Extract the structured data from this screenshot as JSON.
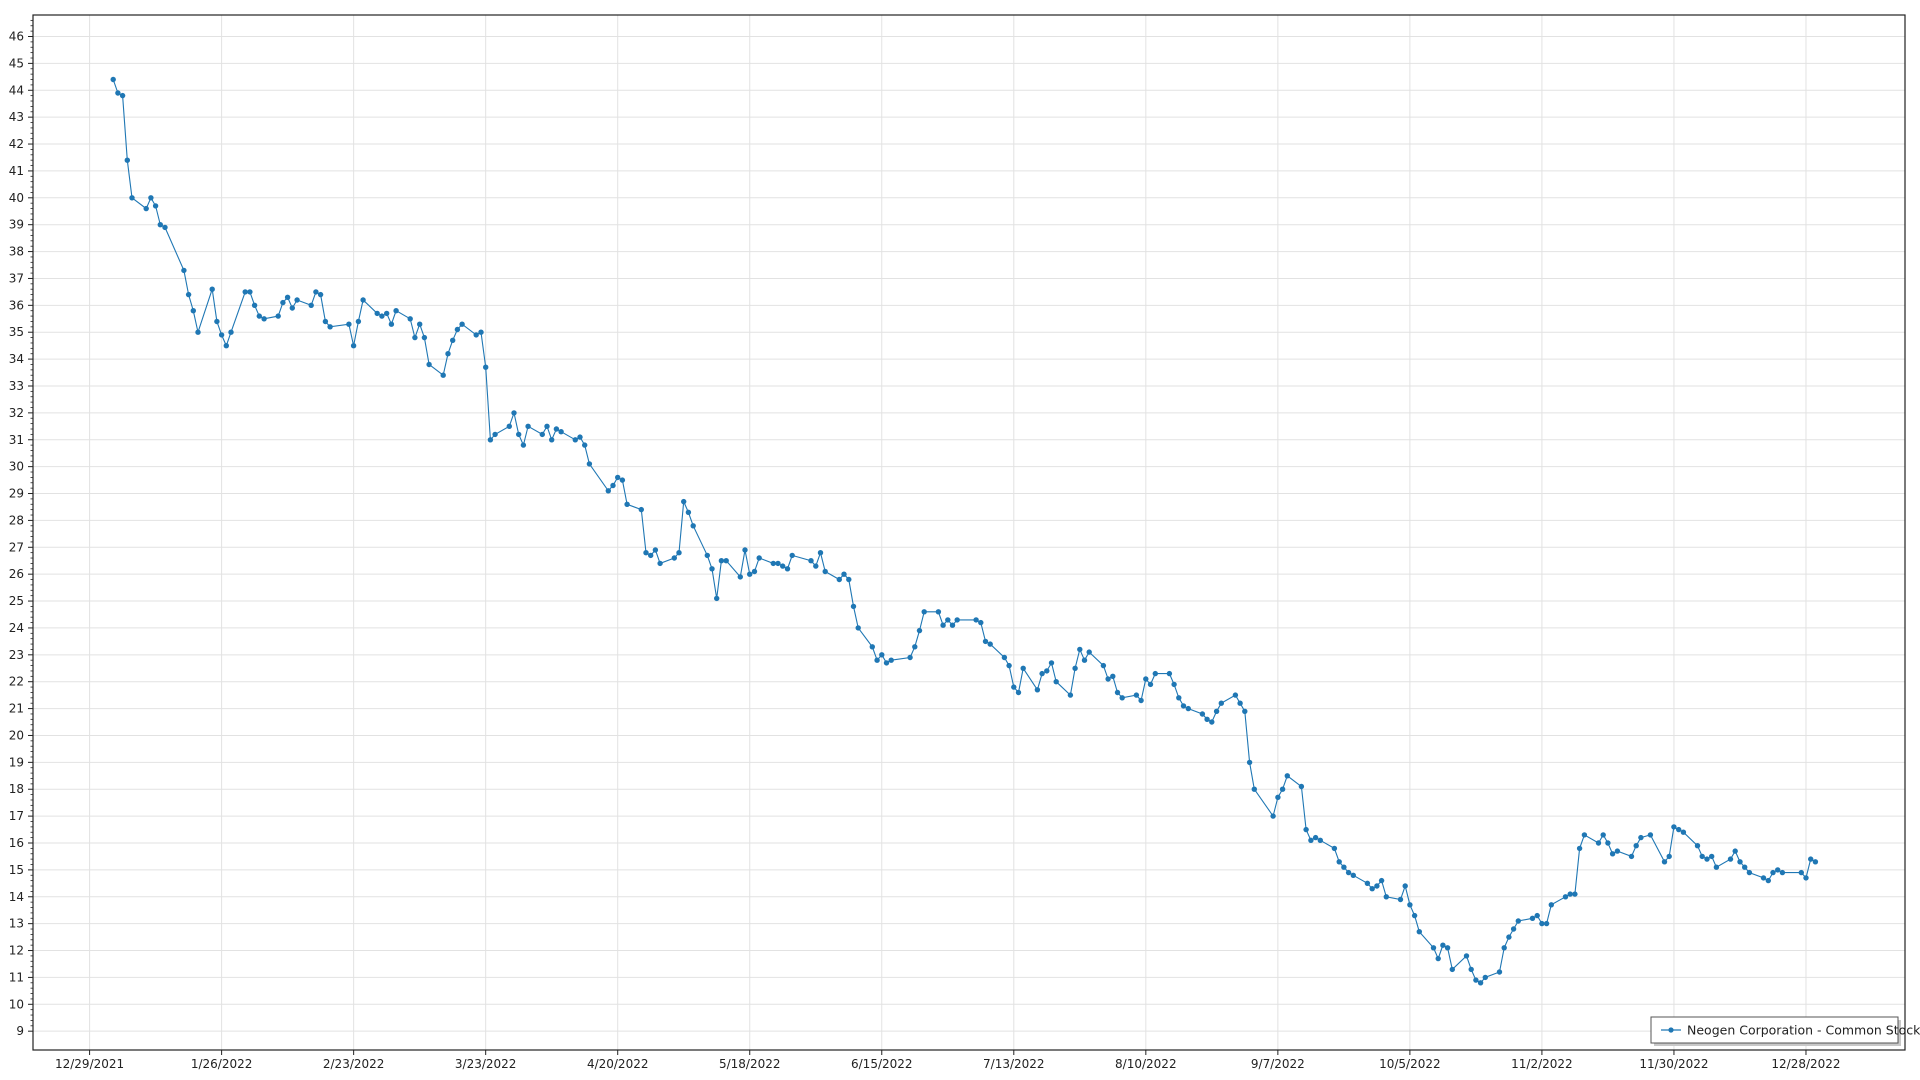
{
  "chart_data": {
    "type": "line",
    "title": "",
    "xlabel": "",
    "ylabel": "",
    "legend_position": "bottom-right",
    "grid": true,
    "ylim": [
      8.3,
      46.8
    ],
    "xlim": [
      "2021-12-17",
      "2023-01-18"
    ],
    "y_ticks": [
      9,
      10,
      11,
      12,
      13,
      14,
      15,
      16,
      17,
      18,
      19,
      20,
      21,
      22,
      23,
      24,
      25,
      26,
      27,
      28,
      29,
      30,
      31,
      32,
      33,
      34,
      35,
      36,
      37,
      38,
      39,
      40,
      41,
      42,
      43,
      44,
      45,
      46
    ],
    "x_ticks": [
      {
        "date": "2021-12-29",
        "label": "12/29/2021"
      },
      {
        "date": "2022-01-26",
        "label": "1/26/2022"
      },
      {
        "date": "2022-02-23",
        "label": "2/23/2022"
      },
      {
        "date": "2022-03-23",
        "label": "3/23/2022"
      },
      {
        "date": "2022-04-20",
        "label": "4/20/2022"
      },
      {
        "date": "2022-05-18",
        "label": "5/18/2022"
      },
      {
        "date": "2022-06-15",
        "label": "6/15/2022"
      },
      {
        "date": "2022-07-13",
        "label": "7/13/2022"
      },
      {
        "date": "2022-08-10",
        "label": "8/10/2022"
      },
      {
        "date": "2022-09-07",
        "label": "9/7/2022"
      },
      {
        "date": "2022-10-05",
        "label": "10/5/2022"
      },
      {
        "date": "2022-11-02",
        "label": "11/2/2022"
      },
      {
        "date": "2022-11-30",
        "label": "11/30/2022"
      },
      {
        "date": "2022-12-28",
        "label": "12/28/2022"
      }
    ],
    "series": [
      {
        "name": "Neogen Corporation - Common Stock",
        "color": "#1f77b4",
        "points": [
          [
            "2022-01-03",
            44.4
          ],
          [
            "2022-01-04",
            43.9
          ],
          [
            "2022-01-05",
            43.8
          ],
          [
            "2022-01-06",
            41.4
          ],
          [
            "2022-01-07",
            40.0
          ],
          [
            "2022-01-10",
            39.6
          ],
          [
            "2022-01-11",
            40.0
          ],
          [
            "2022-01-12",
            39.7
          ],
          [
            "2022-01-13",
            39.0
          ],
          [
            "2022-01-14",
            38.9
          ],
          [
            "2022-01-18",
            37.3
          ],
          [
            "2022-01-19",
            36.4
          ],
          [
            "2022-01-20",
            35.8
          ],
          [
            "2022-01-21",
            35.0
          ],
          [
            "2022-01-24",
            36.6
          ],
          [
            "2022-01-25",
            35.4
          ],
          [
            "2022-01-26",
            34.9
          ],
          [
            "2022-01-27",
            34.5
          ],
          [
            "2022-01-28",
            35.0
          ],
          [
            "2022-01-31",
            36.5
          ],
          [
            "2022-02-01",
            36.5
          ],
          [
            "2022-02-02",
            36.0
          ],
          [
            "2022-02-03",
            35.6
          ],
          [
            "2022-02-04",
            35.5
          ],
          [
            "2022-02-07",
            35.6
          ],
          [
            "2022-02-08",
            36.1
          ],
          [
            "2022-02-09",
            36.3
          ],
          [
            "2022-02-10",
            35.9
          ],
          [
            "2022-02-11",
            36.2
          ],
          [
            "2022-02-14",
            36.0
          ],
          [
            "2022-02-15",
            36.5
          ],
          [
            "2022-02-16",
            36.4
          ],
          [
            "2022-02-17",
            35.4
          ],
          [
            "2022-02-18",
            35.2
          ],
          [
            "2022-02-22",
            35.3
          ],
          [
            "2022-02-23",
            34.5
          ],
          [
            "2022-02-24",
            35.4
          ],
          [
            "2022-02-25",
            36.2
          ],
          [
            "2022-02-28",
            35.7
          ],
          [
            "2022-03-01",
            35.6
          ],
          [
            "2022-03-02",
            35.7
          ],
          [
            "2022-03-03",
            35.3
          ],
          [
            "2022-03-04",
            35.8
          ],
          [
            "2022-03-07",
            35.5
          ],
          [
            "2022-03-08",
            34.8
          ],
          [
            "2022-03-09",
            35.3
          ],
          [
            "2022-03-10",
            34.8
          ],
          [
            "2022-03-11",
            33.8
          ],
          [
            "2022-03-14",
            33.4
          ],
          [
            "2022-03-15",
            34.2
          ],
          [
            "2022-03-16",
            34.7
          ],
          [
            "2022-03-17",
            35.1
          ],
          [
            "2022-03-18",
            35.3
          ],
          [
            "2022-03-21",
            34.9
          ],
          [
            "2022-03-22",
            35.0
          ],
          [
            "2022-03-23",
            33.7
          ],
          [
            "2022-03-24",
            31.0
          ],
          [
            "2022-03-25",
            31.2
          ],
          [
            "2022-03-28",
            31.5
          ],
          [
            "2022-03-29",
            32.0
          ],
          [
            "2022-03-30",
            31.2
          ],
          [
            "2022-03-31",
            30.8
          ],
          [
            "2022-04-01",
            31.5
          ],
          [
            "2022-04-04",
            31.2
          ],
          [
            "2022-04-05",
            31.5
          ],
          [
            "2022-04-06",
            31.0
          ],
          [
            "2022-04-07",
            31.4
          ],
          [
            "2022-04-08",
            31.3
          ],
          [
            "2022-04-11",
            31.0
          ],
          [
            "2022-04-12",
            31.1
          ],
          [
            "2022-04-13",
            30.8
          ],
          [
            "2022-04-14",
            30.1
          ],
          [
            "2022-04-18",
            29.1
          ],
          [
            "2022-04-19",
            29.3
          ],
          [
            "2022-04-20",
            29.6
          ],
          [
            "2022-04-21",
            29.5
          ],
          [
            "2022-04-22",
            28.6
          ],
          [
            "2022-04-25",
            28.4
          ],
          [
            "2022-04-26",
            26.8
          ],
          [
            "2022-04-27",
            26.7
          ],
          [
            "2022-04-28",
            26.9
          ],
          [
            "2022-04-29",
            26.4
          ],
          [
            "2022-05-02",
            26.6
          ],
          [
            "2022-05-03",
            26.8
          ],
          [
            "2022-05-04",
            28.7
          ],
          [
            "2022-05-05",
            28.3
          ],
          [
            "2022-05-06",
            27.8
          ],
          [
            "2022-05-09",
            26.7
          ],
          [
            "2022-05-10",
            26.2
          ],
          [
            "2022-05-11",
            25.1
          ],
          [
            "2022-05-12",
            26.5
          ],
          [
            "2022-05-13",
            26.5
          ],
          [
            "2022-05-16",
            25.9
          ],
          [
            "2022-05-17",
            26.9
          ],
          [
            "2022-05-18",
            26.0
          ],
          [
            "2022-05-19",
            26.1
          ],
          [
            "2022-05-20",
            26.6
          ],
          [
            "2022-05-23",
            26.4
          ],
          [
            "2022-05-24",
            26.4
          ],
          [
            "2022-05-25",
            26.3
          ],
          [
            "2022-05-26",
            26.2
          ],
          [
            "2022-05-27",
            26.7
          ],
          [
            "2022-05-31",
            26.5
          ],
          [
            "2022-06-01",
            26.3
          ],
          [
            "2022-06-02",
            26.8
          ],
          [
            "2022-06-03",
            26.1
          ],
          [
            "2022-06-06",
            25.8
          ],
          [
            "2022-06-07",
            26.0
          ],
          [
            "2022-06-08",
            25.8
          ],
          [
            "2022-06-09",
            24.8
          ],
          [
            "2022-06-10",
            24.0
          ],
          [
            "2022-06-13",
            23.3
          ],
          [
            "2022-06-14",
            22.8
          ],
          [
            "2022-06-15",
            23.0
          ],
          [
            "2022-06-16",
            22.7
          ],
          [
            "2022-06-17",
            22.8
          ],
          [
            "2022-06-21",
            22.9
          ],
          [
            "2022-06-22",
            23.3
          ],
          [
            "2022-06-23",
            23.9
          ],
          [
            "2022-06-24",
            24.6
          ],
          [
            "2022-06-27",
            24.6
          ],
          [
            "2022-06-28",
            24.1
          ],
          [
            "2022-06-29",
            24.3
          ],
          [
            "2022-06-30",
            24.1
          ],
          [
            "2022-07-01",
            24.3
          ],
          [
            "2022-07-05",
            24.3
          ],
          [
            "2022-07-06",
            24.2
          ],
          [
            "2022-07-07",
            23.5
          ],
          [
            "2022-07-08",
            23.4
          ],
          [
            "2022-07-11",
            22.9
          ],
          [
            "2022-07-12",
            22.6
          ],
          [
            "2022-07-13",
            21.8
          ],
          [
            "2022-07-14",
            21.6
          ],
          [
            "2022-07-15",
            22.5
          ],
          [
            "2022-07-18",
            21.7
          ],
          [
            "2022-07-19",
            22.3
          ],
          [
            "2022-07-20",
            22.4
          ],
          [
            "2022-07-21",
            22.7
          ],
          [
            "2022-07-22",
            22.0
          ],
          [
            "2022-07-25",
            21.5
          ],
          [
            "2022-07-26",
            22.5
          ],
          [
            "2022-07-27",
            23.2
          ],
          [
            "2022-07-28",
            22.8
          ],
          [
            "2022-07-29",
            23.1
          ],
          [
            "2022-08-01",
            22.6
          ],
          [
            "2022-08-02",
            22.1
          ],
          [
            "2022-08-03",
            22.2
          ],
          [
            "2022-08-04",
            21.6
          ],
          [
            "2022-08-05",
            21.4
          ],
          [
            "2022-08-08",
            21.5
          ],
          [
            "2022-08-09",
            21.3
          ],
          [
            "2022-08-10",
            22.1
          ],
          [
            "2022-08-11",
            21.9
          ],
          [
            "2022-08-12",
            22.3
          ],
          [
            "2022-08-15",
            22.3
          ],
          [
            "2022-08-16",
            21.9
          ],
          [
            "2022-08-17",
            21.4
          ],
          [
            "2022-08-18",
            21.1
          ],
          [
            "2022-08-19",
            21.0
          ],
          [
            "2022-08-22",
            20.8
          ],
          [
            "2022-08-23",
            20.6
          ],
          [
            "2022-08-24",
            20.5
          ],
          [
            "2022-08-25",
            20.9
          ],
          [
            "2022-08-26",
            21.2
          ],
          [
            "2022-08-29",
            21.5
          ],
          [
            "2022-08-30",
            21.2
          ],
          [
            "2022-08-31",
            20.9
          ],
          [
            "2022-09-01",
            19.0
          ],
          [
            "2022-09-02",
            18.0
          ],
          [
            "2022-09-06",
            17.0
          ],
          [
            "2022-09-07",
            17.7
          ],
          [
            "2022-09-08",
            18.0
          ],
          [
            "2022-09-09",
            18.5
          ],
          [
            "2022-09-12",
            18.1
          ],
          [
            "2022-09-13",
            16.5
          ],
          [
            "2022-09-14",
            16.1
          ],
          [
            "2022-09-15",
            16.2
          ],
          [
            "2022-09-16",
            16.1
          ],
          [
            "2022-09-19",
            15.8
          ],
          [
            "2022-09-20",
            15.3
          ],
          [
            "2022-09-21",
            15.1
          ],
          [
            "2022-09-22",
            14.9
          ],
          [
            "2022-09-23",
            14.8
          ],
          [
            "2022-09-26",
            14.5
          ],
          [
            "2022-09-27",
            14.3
          ],
          [
            "2022-09-28",
            14.4
          ],
          [
            "2022-09-29",
            14.6
          ],
          [
            "2022-09-30",
            14.0
          ],
          [
            "2022-10-03",
            13.9
          ],
          [
            "2022-10-04",
            14.4
          ],
          [
            "2022-10-05",
            13.7
          ],
          [
            "2022-10-06",
            13.3
          ],
          [
            "2022-10-07",
            12.7
          ],
          [
            "2022-10-10",
            12.1
          ],
          [
            "2022-10-11",
            11.7
          ],
          [
            "2022-10-12",
            12.2
          ],
          [
            "2022-10-13",
            12.1
          ],
          [
            "2022-10-14",
            11.3
          ],
          [
            "2022-10-17",
            11.8
          ],
          [
            "2022-10-18",
            11.3
          ],
          [
            "2022-10-19",
            10.9
          ],
          [
            "2022-10-20",
            10.8
          ],
          [
            "2022-10-21",
            11.0
          ],
          [
            "2022-10-24",
            11.2
          ],
          [
            "2022-10-25",
            12.1
          ],
          [
            "2022-10-26",
            12.5
          ],
          [
            "2022-10-27",
            12.8
          ],
          [
            "2022-10-28",
            13.1
          ],
          [
            "2022-10-31",
            13.2
          ],
          [
            "2022-11-01",
            13.3
          ],
          [
            "2022-11-02",
            13.0
          ],
          [
            "2022-11-03",
            13.0
          ],
          [
            "2022-11-04",
            13.7
          ],
          [
            "2022-11-07",
            14.0
          ],
          [
            "2022-11-08",
            14.1
          ],
          [
            "2022-11-09",
            14.1
          ],
          [
            "2022-11-10",
            15.8
          ],
          [
            "2022-11-11",
            16.3
          ],
          [
            "2022-11-14",
            16.0
          ],
          [
            "2022-11-15",
            16.3
          ],
          [
            "2022-11-16",
            16.0
          ],
          [
            "2022-11-17",
            15.6
          ],
          [
            "2022-11-18",
            15.7
          ],
          [
            "2022-11-21",
            15.5
          ],
          [
            "2022-11-22",
            15.9
          ],
          [
            "2022-11-23",
            16.2
          ],
          [
            "2022-11-25",
            16.3
          ],
          [
            "2022-11-28",
            15.3
          ],
          [
            "2022-11-29",
            15.5
          ],
          [
            "2022-11-30",
            16.6
          ],
          [
            "2022-12-01",
            16.5
          ],
          [
            "2022-12-02",
            16.4
          ],
          [
            "2022-12-05",
            15.9
          ],
          [
            "2022-12-06",
            15.5
          ],
          [
            "2022-12-07",
            15.4
          ],
          [
            "2022-12-08",
            15.5
          ],
          [
            "2022-12-09",
            15.1
          ],
          [
            "2022-12-12",
            15.4
          ],
          [
            "2022-12-13",
            15.7
          ],
          [
            "2022-12-14",
            15.3
          ],
          [
            "2022-12-15",
            15.1
          ],
          [
            "2022-12-16",
            14.9
          ],
          [
            "2022-12-19",
            14.7
          ],
          [
            "2022-12-20",
            14.6
          ],
          [
            "2022-12-21",
            14.9
          ],
          [
            "2022-12-22",
            15.0
          ],
          [
            "2022-12-23",
            14.9
          ],
          [
            "2022-12-27",
            14.9
          ],
          [
            "2022-12-28",
            14.7
          ],
          [
            "2022-12-29",
            15.4
          ],
          [
            "2022-12-30",
            15.3
          ]
        ]
      }
    ]
  }
}
